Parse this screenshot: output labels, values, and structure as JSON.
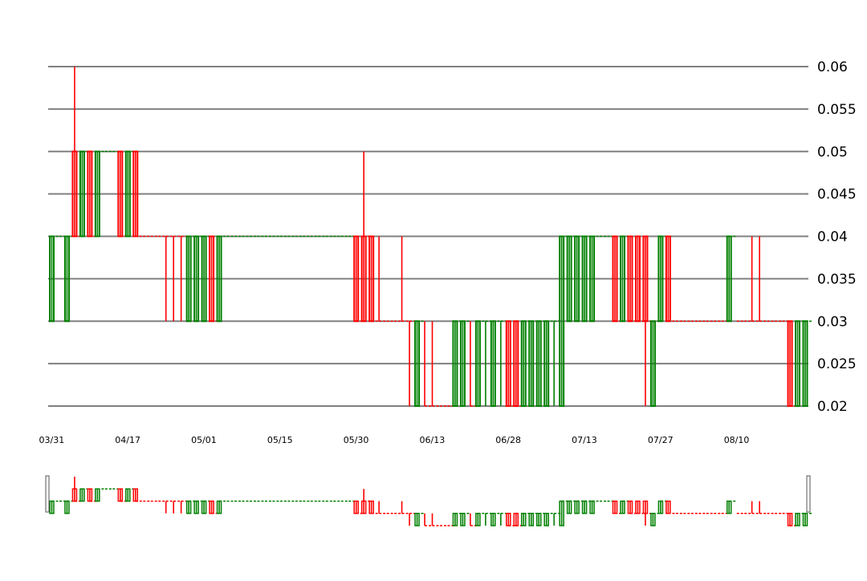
{
  "chart_data": {
    "type": "candlestick",
    "title": "",
    "xlabel": "",
    "ylabel": "",
    "ylim": [
      0.02,
      0.06
    ],
    "y_ticks": [
      "0.02",
      "0.025",
      "0.03",
      "0.035",
      "0.04",
      "0.045",
      "0.05",
      "0.055",
      "0.06"
    ],
    "x_ticks": [
      {
        "label": "03/31",
        "index": 0
      },
      {
        "label": "04/17",
        "index": 10
      },
      {
        "label": "05/01",
        "index": 20
      },
      {
        "label": "05/15",
        "index": 30
      },
      {
        "label": "05/30",
        "index": 40
      },
      {
        "label": "06/13",
        "index": 50
      },
      {
        "label": "06/28",
        "index": 60
      },
      {
        "label": "07/13",
        "index": 70
      },
      {
        "label": "07/27",
        "index": 80
      },
      {
        "label": "08/10",
        "index": 90
      }
    ],
    "grid": true,
    "up_color": "#008000",
    "down_color": "#ff0000",
    "navigator": true,
    "candles": [
      {
        "o": 0.03,
        "h": 0.04,
        "l": 0.03,
        "c": 0.04,
        "dir": "up"
      },
      {
        "o": 0.04,
        "h": 0.04,
        "l": 0.04,
        "c": 0.04,
        "dir": "up"
      },
      {
        "o": 0.03,
        "h": 0.04,
        "l": 0.03,
        "c": 0.04,
        "dir": "up"
      },
      {
        "o": 0.05,
        "h": 0.06,
        "l": 0.04,
        "c": 0.04,
        "dir": "down"
      },
      {
        "o": 0.04,
        "h": 0.05,
        "l": 0.04,
        "c": 0.05,
        "dir": "up"
      },
      {
        "o": 0.05,
        "h": 0.05,
        "l": 0.04,
        "c": 0.04,
        "dir": "down"
      },
      {
        "o": 0.04,
        "h": 0.05,
        "l": 0.04,
        "c": 0.05,
        "dir": "up"
      },
      {
        "o": 0.05,
        "h": 0.05,
        "l": 0.05,
        "c": 0.05,
        "dir": "up"
      },
      {
        "o": 0.05,
        "h": 0.05,
        "l": 0.05,
        "c": 0.05,
        "dir": "up"
      },
      {
        "o": 0.05,
        "h": 0.05,
        "l": 0.04,
        "c": 0.04,
        "dir": "down"
      },
      {
        "o": 0.04,
        "h": 0.05,
        "l": 0.04,
        "c": 0.05,
        "dir": "up"
      },
      {
        "o": 0.05,
        "h": 0.05,
        "l": 0.04,
        "c": 0.04,
        "dir": "down"
      },
      {
        "o": 0.04,
        "h": 0.04,
        "l": 0.04,
        "c": 0.04,
        "dir": "down"
      },
      {
        "o": 0.04,
        "h": 0.04,
        "l": 0.04,
        "c": 0.04,
        "dir": "down"
      },
      {
        "o": 0.04,
        "h": 0.04,
        "l": 0.04,
        "c": 0.04,
        "dir": "down"
      },
      {
        "o": 0.04,
        "h": 0.04,
        "l": 0.03,
        "c": 0.04,
        "dir": "down"
      },
      {
        "o": 0.04,
        "h": 0.04,
        "l": 0.03,
        "c": 0.04,
        "dir": "down"
      },
      {
        "o": 0.04,
        "h": 0.04,
        "l": 0.03,
        "c": 0.04,
        "dir": "down"
      },
      {
        "o": 0.03,
        "h": 0.04,
        "l": 0.03,
        "c": 0.04,
        "dir": "up"
      },
      {
        "o": 0.03,
        "h": 0.04,
        "l": 0.03,
        "c": 0.04,
        "dir": "up"
      },
      {
        "o": 0.03,
        "h": 0.04,
        "l": 0.03,
        "c": 0.04,
        "dir": "up"
      },
      {
        "o": 0.04,
        "h": 0.04,
        "l": 0.03,
        "c": 0.03,
        "dir": "down"
      },
      {
        "o": 0.03,
        "h": 0.04,
        "l": 0.03,
        "c": 0.04,
        "dir": "up"
      },
      {
        "o": 0.04,
        "h": 0.04,
        "l": 0.04,
        "c": 0.04,
        "dir": "up"
      },
      {
        "o": 0.04,
        "h": 0.04,
        "l": 0.04,
        "c": 0.04,
        "dir": "up"
      },
      {
        "o": 0.04,
        "h": 0.04,
        "l": 0.04,
        "c": 0.04,
        "dir": "up"
      },
      {
        "o": 0.04,
        "h": 0.04,
        "l": 0.04,
        "c": 0.04,
        "dir": "up"
      },
      {
        "o": 0.04,
        "h": 0.04,
        "l": 0.04,
        "c": 0.04,
        "dir": "up"
      },
      {
        "o": 0.04,
        "h": 0.04,
        "l": 0.04,
        "c": 0.04,
        "dir": "up"
      },
      {
        "o": 0.04,
        "h": 0.04,
        "l": 0.04,
        "c": 0.04,
        "dir": "up"
      },
      {
        "o": 0.04,
        "h": 0.04,
        "l": 0.04,
        "c": 0.04,
        "dir": "up"
      },
      {
        "o": 0.04,
        "h": 0.04,
        "l": 0.04,
        "c": 0.04,
        "dir": "up"
      },
      {
        "o": 0.04,
        "h": 0.04,
        "l": 0.04,
        "c": 0.04,
        "dir": "up"
      },
      {
        "o": 0.04,
        "h": 0.04,
        "l": 0.04,
        "c": 0.04,
        "dir": "up"
      },
      {
        "o": 0.04,
        "h": 0.04,
        "l": 0.04,
        "c": 0.04,
        "dir": "up"
      },
      {
        "o": 0.04,
        "h": 0.04,
        "l": 0.04,
        "c": 0.04,
        "dir": "up"
      },
      {
        "o": 0.04,
        "h": 0.04,
        "l": 0.04,
        "c": 0.04,
        "dir": "up"
      },
      {
        "o": 0.04,
        "h": 0.04,
        "l": 0.04,
        "c": 0.04,
        "dir": "up"
      },
      {
        "o": 0.04,
        "h": 0.04,
        "l": 0.04,
        "c": 0.04,
        "dir": "up"
      },
      {
        "o": 0.04,
        "h": 0.04,
        "l": 0.04,
        "c": 0.04,
        "dir": "up"
      },
      {
        "o": 0.04,
        "h": 0.04,
        "l": 0.03,
        "c": 0.03,
        "dir": "down"
      },
      {
        "o": 0.03,
        "h": 0.05,
        "l": 0.03,
        "c": 0.04,
        "dir": "down"
      },
      {
        "o": 0.04,
        "h": 0.04,
        "l": 0.03,
        "c": 0.03,
        "dir": "down"
      },
      {
        "o": 0.03,
        "h": 0.04,
        "l": 0.03,
        "c": 0.03,
        "dir": "down"
      },
      {
        "o": 0.03,
        "h": 0.03,
        "l": 0.03,
        "c": 0.03,
        "dir": "down"
      },
      {
        "o": 0.03,
        "h": 0.03,
        "l": 0.03,
        "c": 0.03,
        "dir": "down"
      },
      {
        "o": 0.03,
        "h": 0.04,
        "l": 0.03,
        "c": 0.03,
        "dir": "down"
      },
      {
        "o": 0.03,
        "h": 0.03,
        "l": 0.02,
        "c": 0.03,
        "dir": "down"
      },
      {
        "o": 0.02,
        "h": 0.03,
        "l": 0.02,
        "c": 0.03,
        "dir": "up"
      },
      {
        "o": 0.02,
        "h": 0.03,
        "l": 0.02,
        "c": 0.02,
        "dir": "down"
      },
      {
        "o": 0.02,
        "h": 0.03,
        "l": 0.02,
        "c": 0.02,
        "dir": "down"
      },
      {
        "o": 0.02,
        "h": 0.02,
        "l": 0.02,
        "c": 0.02,
        "dir": "down"
      },
      {
        "o": 0.02,
        "h": 0.02,
        "l": 0.02,
        "c": 0.02,
        "dir": "down"
      },
      {
        "o": 0.02,
        "h": 0.03,
        "l": 0.02,
        "c": 0.03,
        "dir": "up"
      },
      {
        "o": 0.02,
        "h": 0.03,
        "l": 0.02,
        "c": 0.03,
        "dir": "up"
      },
      {
        "o": 0.02,
        "h": 0.03,
        "l": 0.02,
        "c": 0.02,
        "dir": "down"
      },
      {
        "o": 0.02,
        "h": 0.03,
        "l": 0.02,
        "c": 0.03,
        "dir": "up"
      },
      {
        "o": 0.03,
        "h": 0.03,
        "l": 0.02,
        "c": 0.03,
        "dir": "up"
      },
      {
        "o": 0.02,
        "h": 0.03,
        "l": 0.02,
        "c": 0.03,
        "dir": "up"
      },
      {
        "o": 0.03,
        "h": 0.03,
        "l": 0.02,
        "c": 0.03,
        "dir": "up"
      },
      {
        "o": 0.03,
        "h": 0.03,
        "l": 0.02,
        "c": 0.02,
        "dir": "down"
      },
      {
        "o": 0.03,
        "h": 0.03,
        "l": 0.02,
        "c": 0.02,
        "dir": "down"
      },
      {
        "o": 0.02,
        "h": 0.03,
        "l": 0.02,
        "c": 0.03,
        "dir": "up"
      },
      {
        "o": 0.02,
        "h": 0.03,
        "l": 0.02,
        "c": 0.03,
        "dir": "up"
      },
      {
        "o": 0.02,
        "h": 0.03,
        "l": 0.02,
        "c": 0.03,
        "dir": "up"
      },
      {
        "o": 0.02,
        "h": 0.03,
        "l": 0.02,
        "c": 0.03,
        "dir": "up"
      },
      {
        "o": 0.03,
        "h": 0.03,
        "l": 0.02,
        "c": 0.03,
        "dir": "up"
      },
      {
        "o": 0.02,
        "h": 0.04,
        "l": 0.02,
        "c": 0.04,
        "dir": "up"
      },
      {
        "o": 0.03,
        "h": 0.04,
        "l": 0.03,
        "c": 0.04,
        "dir": "up"
      },
      {
        "o": 0.03,
        "h": 0.04,
        "l": 0.03,
        "c": 0.04,
        "dir": "up"
      },
      {
        "o": 0.03,
        "h": 0.04,
        "l": 0.03,
        "c": 0.04,
        "dir": "up"
      },
      {
        "o": 0.03,
        "h": 0.04,
        "l": 0.03,
        "c": 0.04,
        "dir": "up"
      },
      {
        "o": 0.04,
        "h": 0.04,
        "l": 0.04,
        "c": 0.04,
        "dir": "up"
      },
      {
        "o": 0.04,
        "h": 0.04,
        "l": 0.04,
        "c": 0.04,
        "dir": "up"
      },
      {
        "o": 0.04,
        "h": 0.04,
        "l": 0.03,
        "c": 0.03,
        "dir": "down"
      },
      {
        "o": 0.03,
        "h": 0.04,
        "l": 0.03,
        "c": 0.04,
        "dir": "up"
      },
      {
        "o": 0.04,
        "h": 0.04,
        "l": 0.03,
        "c": 0.03,
        "dir": "down"
      },
      {
        "o": 0.04,
        "h": 0.04,
        "l": 0.03,
        "c": 0.03,
        "dir": "down"
      },
      {
        "o": 0.04,
        "h": 0.04,
        "l": 0.02,
        "c": 0.03,
        "dir": "down"
      },
      {
        "o": 0.02,
        "h": 0.03,
        "l": 0.02,
        "c": 0.03,
        "dir": "up"
      },
      {
        "o": 0.03,
        "h": 0.04,
        "l": 0.03,
        "c": 0.04,
        "dir": "up"
      },
      {
        "o": 0.04,
        "h": 0.04,
        "l": 0.03,
        "c": 0.03,
        "dir": "down"
      },
      {
        "o": 0.03,
        "h": 0.03,
        "l": 0.03,
        "c": 0.03,
        "dir": "down"
      },
      {
        "o": 0.03,
        "h": 0.03,
        "l": 0.03,
        "c": 0.03,
        "dir": "down"
      },
      {
        "o": 0.03,
        "h": 0.03,
        "l": 0.03,
        "c": 0.03,
        "dir": "down"
      },
      {
        "o": 0.03,
        "h": 0.03,
        "l": 0.03,
        "c": 0.03,
        "dir": "down"
      },
      {
        "o": 0.03,
        "h": 0.03,
        "l": 0.03,
        "c": 0.03,
        "dir": "down"
      },
      {
        "o": 0.03,
        "h": 0.03,
        "l": 0.03,
        "c": 0.03,
        "dir": "down"
      },
      {
        "o": 0.03,
        "h": 0.03,
        "l": 0.03,
        "c": 0.03,
        "dir": "down"
      },
      {
        "o": 0.03,
        "h": 0.04,
        "l": 0.03,
        "c": 0.04,
        "dir": "up"
      },
      {
        "o": 0.03,
        "h": 0.03,
        "l": 0.03,
        "c": 0.03,
        "dir": "down"
      },
      {
        "o": 0.03,
        "h": 0.03,
        "l": 0.03,
        "c": 0.03,
        "dir": "down"
      },
      {
        "o": 0.03,
        "h": 0.04,
        "l": 0.03,
        "c": 0.03,
        "dir": "down"
      },
      {
        "o": 0.03,
        "h": 0.04,
        "l": 0.03,
        "c": 0.03,
        "dir": "down"
      },
      {
        "o": 0.03,
        "h": 0.03,
        "l": 0.03,
        "c": 0.03,
        "dir": "down"
      },
      {
        "o": 0.03,
        "h": 0.03,
        "l": 0.03,
        "c": 0.03,
        "dir": "down"
      },
      {
        "o": 0.03,
        "h": 0.03,
        "l": 0.03,
        "c": 0.03,
        "dir": "down"
      },
      {
        "o": 0.03,
        "h": 0.03,
        "l": 0.02,
        "c": 0.02,
        "dir": "down"
      },
      {
        "o": 0.02,
        "h": 0.03,
        "l": 0.02,
        "c": 0.03,
        "dir": "up"
      },
      {
        "o": 0.02,
        "h": 0.03,
        "l": 0.02,
        "c": 0.03,
        "dir": "up"
      },
      {
        "o": 0.03,
        "h": 0.03,
        "l": 0.03,
        "c": 0.03,
        "dir": "up"
      }
    ]
  }
}
